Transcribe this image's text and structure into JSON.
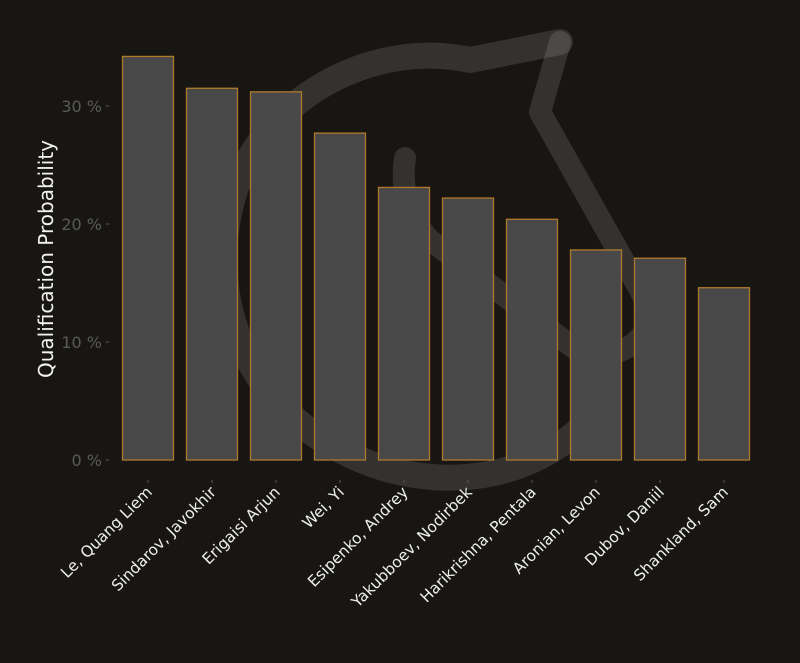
{
  "chart_data": {
    "type": "bar",
    "title": "",
    "xlabel": "",
    "ylabel": "Qualification Probability",
    "ylim": [
      0,
      35
    ],
    "yticks": [
      0,
      10,
      20,
      30
    ],
    "ytick_labels": [
      "0 %",
      "10 %",
      "20 %",
      "30 %"
    ],
    "grid": false,
    "legend": null,
    "categories": [
      "Le, Quang Liem",
      "Sindarov, Javokhir",
      "Erigaisi Arjun",
      "Wei, Yi",
      "Esipenko, Andrey",
      "Yakubboev, Nodirbek",
      "Harikrishna, Pentala",
      "Aronian, Levon",
      "Dubov, Daniil",
      "Shankland, Sam"
    ],
    "values": [
      34.2,
      31.5,
      31.2,
      27.7,
      23.1,
      22.2,
      20.4,
      17.8,
      17.1,
      14.6
    ],
    "unit": "%"
  },
  "colors": {
    "background": "#181613",
    "bar_fill": "#4b4b4b",
    "bar_edge": "#b07a2a",
    "tick_label": "#5a5a5a",
    "axis_label": "#f2f2f2",
    "category_label": "#eeeeee",
    "watermark": "#ffffff"
  },
  "watermark": {
    "icon": "chess-knight-logo-icon",
    "opacity": 0.12
  }
}
